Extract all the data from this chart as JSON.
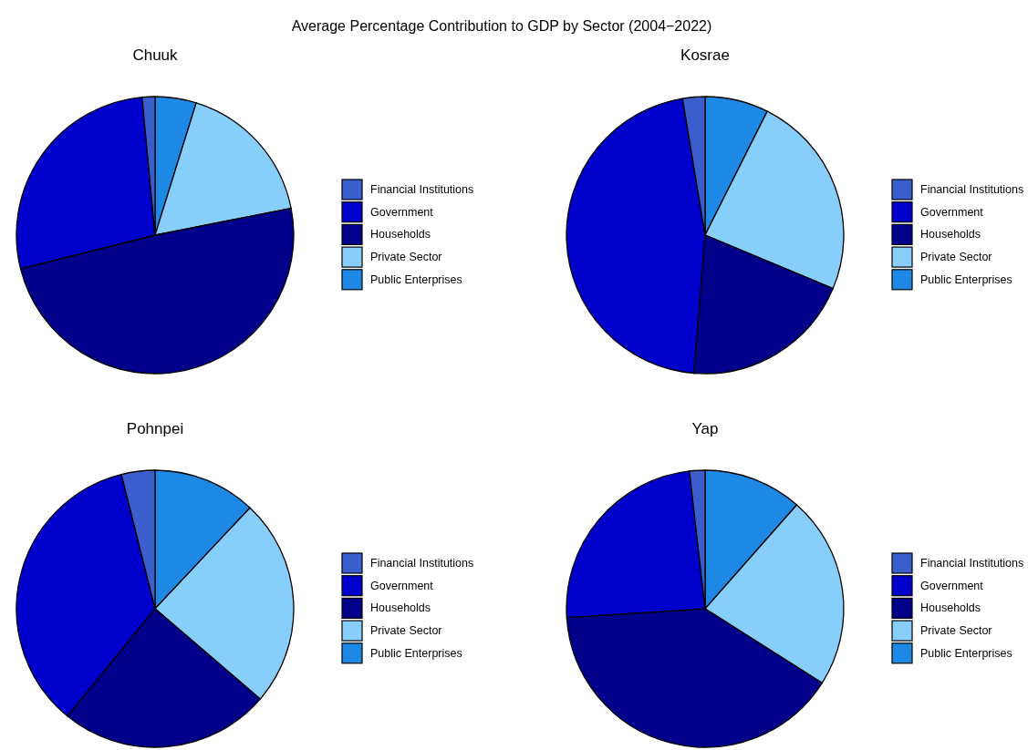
{
  "chart_data": [
    {
      "type": "other",
      "title": "Average Percentage Contribution to GDP by Sector (2004−2022)"
    },
    {
      "type": "pie",
      "title": "Chuuk",
      "categories": [
        "Financial Institutions",
        "Government",
        "Households",
        "Private Sector",
        "Public Enterprises"
      ],
      "values": [
        1.5,
        27.4,
        49.2,
        17.1,
        4.8
      ],
      "colors": [
        "#3a5fcd",
        "#0000cd",
        "#00008b",
        "#87cefa",
        "#1e88e5"
      ],
      "legend": "right"
    },
    {
      "type": "pie",
      "title": "Kosrae",
      "categories": [
        "Financial Institutions",
        "Government",
        "Households",
        "Private Sector",
        "Public Enterprises"
      ],
      "values": [
        2.6,
        46.1,
        20.0,
        23.9,
        7.4
      ],
      "colors": [
        "#3a5fcd",
        "#0000cd",
        "#00008b",
        "#87cefa",
        "#1e88e5"
      ],
      "legend": "right"
    },
    {
      "type": "pie",
      "title": "Pohnpei",
      "categories": [
        "Financial Institutions",
        "Government",
        "Households",
        "Private Sector",
        "Public Enterprises"
      ],
      "values": [
        3.9,
        35.2,
        24.6,
        24.3,
        12.0
      ],
      "colors": [
        "#3a5fcd",
        "#0000cd",
        "#00008b",
        "#87cefa",
        "#1e88e5"
      ],
      "legend": "right"
    },
    {
      "type": "pie",
      "title": "Yap",
      "categories": [
        "Financial Institutions",
        "Government",
        "Households",
        "Private Sector",
        "Public Enterprises"
      ],
      "values": [
        1.8,
        24.2,
        40.0,
        22.5,
        11.5
      ],
      "colors": [
        "#3a5fcd",
        "#0000cd",
        "#00008b",
        "#87cefa",
        "#1e88e5"
      ],
      "legend": "right"
    }
  ]
}
